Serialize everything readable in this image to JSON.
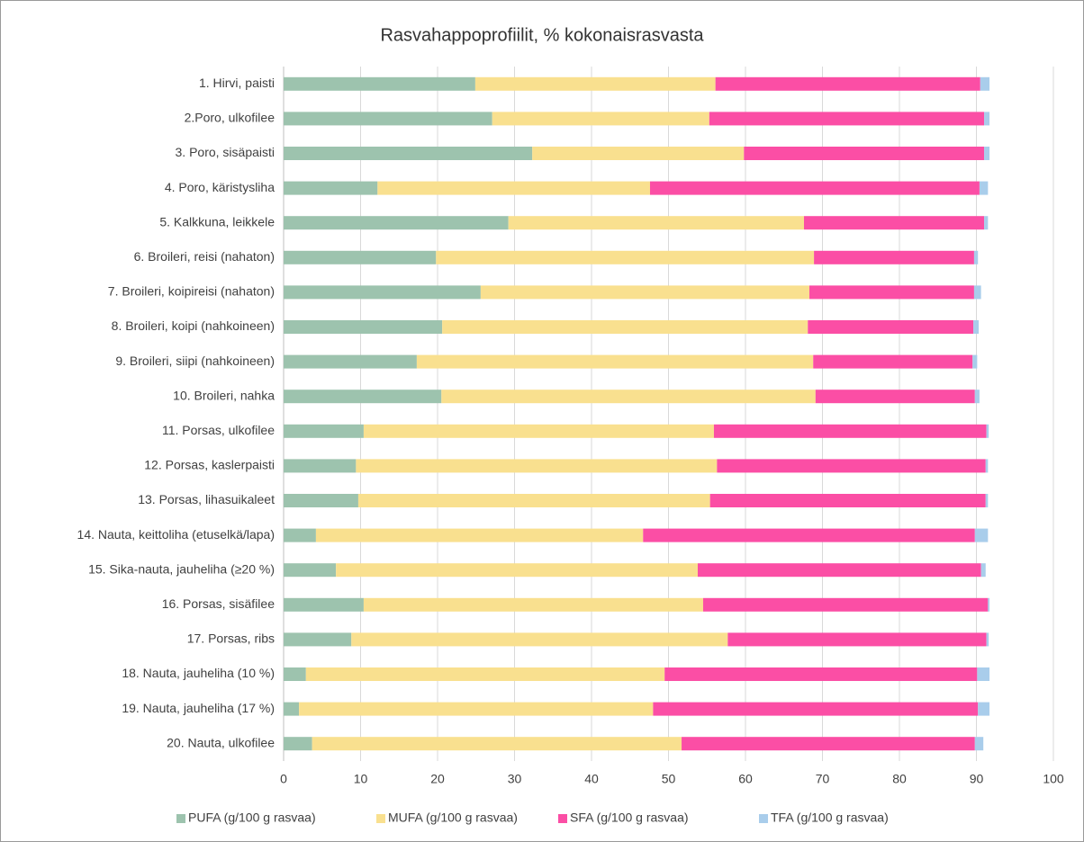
{
  "chart_data": {
    "type": "stacked_barh",
    "title": "Rasvahappoprofiilit, % kokonaisrasvasta",
    "categories": [
      "1. Hirvi, paisti",
      "2.Poro, ulkofilee",
      "3. Poro, sisäpaisti",
      "4. Poro, käristysliha",
      "5. Kalkkuna, leikkele",
      "6. Broileri, reisi (nahaton)",
      "7. Broileri, koipireisi (nahaton)",
      "8. Broileri, koipi (nahkoineen)",
      "9. Broileri, siipi (nahkoineen)",
      "10. Broileri, nahka",
      "11. Porsas, ulkofilee",
      "12. Porsas, kaslerpaisti",
      "13. Porsas, lihasuikaleet",
      "14. Nauta, keittoliha (etuselkä/lapa)",
      "15. Sika-nauta, jauheliha (≥20 %)",
      "16. Porsas, sisäfilee",
      "17. Porsas, ribs",
      "18. Nauta, jauheliha (10 %)",
      "19. Nauta, jauheliha (17 %)",
      "20. Nauta, ulkofilee"
    ],
    "series": [
      {
        "name": "PUFA (g/100 g rasvaa)",
        "color": "#9dc3ae",
        "values": [
          24.9,
          27.1,
          32.3,
          12.2,
          29.2,
          19.8,
          25.6,
          20.6,
          17.3,
          20.5,
          10.4,
          9.4,
          9.7,
          4.2,
          6.8,
          10.4,
          8.8,
          2.9,
          2.0,
          3.7
        ]
      },
      {
        "name": "MUFA (g/100 g rasvaa)",
        "color": "#f9e08f",
        "values": [
          31.2,
          28.2,
          27.5,
          35.4,
          38.4,
          49.1,
          42.7,
          47.5,
          51.5,
          48.6,
          45.5,
          46.9,
          45.7,
          42.5,
          47.0,
          44.1,
          48.9,
          46.6,
          46.0,
          48.0
        ]
      },
      {
        "name": "SFA (g/100 g rasvaa)",
        "color": "#fb4ea5",
        "values": [
          34.4,
          35.7,
          31.2,
          42.8,
          23.4,
          20.8,
          21.4,
          21.5,
          20.7,
          20.7,
          35.4,
          34.9,
          35.8,
          43.1,
          36.8,
          37.0,
          33.6,
          40.6,
          42.2,
          38.1
        ]
      },
      {
        "name": "TFA (g/100 g rasvaa)",
        "color": "#a9cdeb",
        "values": [
          1.2,
          0.7,
          0.7,
          1.1,
          0.5,
          0.5,
          0.9,
          0.7,
          0.6,
          0.6,
          0.3,
          0.3,
          0.3,
          1.7,
          0.6,
          0.2,
          0.3,
          1.6,
          1.5,
          1.1
        ]
      }
    ],
    "xlim": [
      0,
      100
    ],
    "xticks": [
      0,
      10,
      20,
      30,
      40,
      50,
      60,
      70,
      80,
      90,
      100
    ],
    "grid": true,
    "legend": "bottom"
  }
}
